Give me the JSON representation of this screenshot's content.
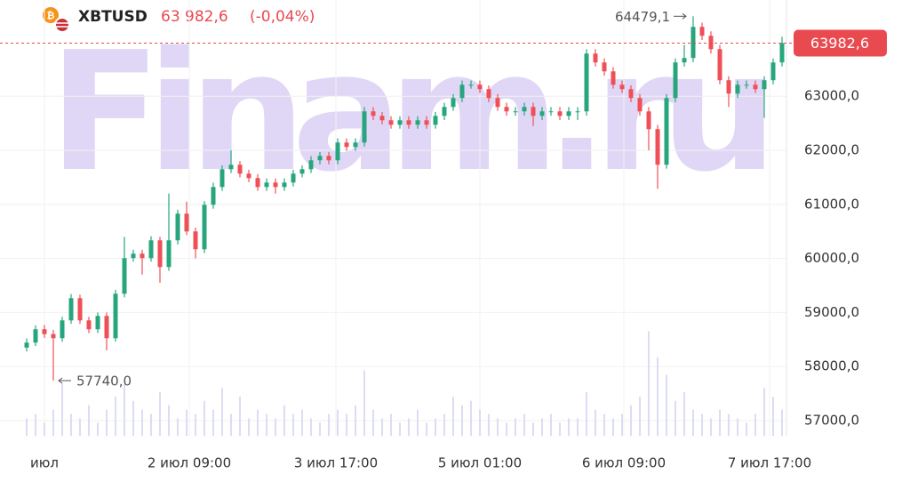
{
  "header": {
    "symbol": "XBTUSD",
    "price": "63 982,6",
    "change": "(-0,04%)"
  },
  "watermark": "Finam.ru",
  "chart_data": {
    "type": "candlestick",
    "open": [
      58350,
      58443,
      58690,
      58600,
      58525,
      58854,
      59265,
      58854,
      58690,
      58936,
      58525,
      59347,
      60006,
      60088,
      60006,
      60335,
      59841,
      60335,
      60828,
      60499,
      60170,
      60992,
      61321,
      61650,
      61733,
      61568,
      61486,
      61321,
      61404,
      61321,
      61404,
      61568,
      61650,
      61815,
      61897,
      61815,
      62144,
      62062,
      62144,
      62720,
      62637,
      62555,
      62473,
      62555,
      62473,
      62555,
      62473,
      62637,
      62802,
      62967,
      63213,
      63213,
      63131,
      62967,
      62802,
      62720,
      62720,
      62802,
      62637,
      62720,
      62720,
      62637,
      62720,
      62720,
      63789,
      63625,
      63460,
      63213,
      63131,
      62967,
      62720,
      62391,
      61733,
      62967,
      63625,
      63707,
      64283,
      64118,
      63871,
      63296,
      63049,
      63213,
      63213,
      63131,
      63296,
      63625
    ],
    "high": [
      58520,
      58760,
      58770,
      58680,
      58920,
      59340,
      59330,
      58920,
      59000,
      59000,
      59420,
      60400,
      60160,
      60160,
      60410,
      60400,
      61200,
      60900,
      61050,
      60570,
      61060,
      61400,
      61720,
      62000,
      61800,
      61640,
      61560,
      61480,
      61480,
      61480,
      61640,
      61720,
      61890,
      61970,
      61970,
      62220,
      62220,
      62220,
      62800,
      62800,
      62710,
      62630,
      62630,
      62630,
      62630,
      62630,
      62710,
      62880,
      63040,
      63290,
      63290,
      63290,
      63200,
      63040,
      62880,
      62800,
      62880,
      62880,
      62800,
      62800,
      62800,
      62800,
      62800,
      63870,
      63870,
      63700,
      63540,
      63290,
      63200,
      63040,
      62800,
      62470,
      63040,
      63700,
      63950,
      64479.1,
      64360,
      64200,
      63950,
      63370,
      63290,
      63290,
      63290,
      63370,
      63700,
      64100
    ],
    "low": [
      58280,
      58380,
      58530,
      57740,
      58460,
      58790,
      58790,
      58620,
      58620,
      58300,
      58460,
      59280,
      59940,
      59700,
      59940,
      59550,
      59770,
      60260,
      60430,
      60000,
      60100,
      60920,
      61250,
      61580,
      61500,
      61410,
      61250,
      61250,
      61200,
      61250,
      61330,
      61500,
      61580,
      61740,
      61740,
      61740,
      61990,
      61990,
      62070,
      62560,
      62480,
      62400,
      62400,
      62400,
      62400,
      62400,
      62400,
      62560,
      62730,
      62890,
      63140,
      63060,
      62890,
      62730,
      62640,
      62640,
      62640,
      62450,
      62560,
      62640,
      62560,
      62560,
      62560,
      62640,
      63550,
      63380,
      63140,
      63060,
      62890,
      62640,
      62000,
      61288,
      61660,
      62890,
      63550,
      63630,
      64040,
      63790,
      63220,
      62800,
      62970,
      63140,
      63060,
      62600,
      63220,
      63550
    ],
    "close": [
      58443,
      58690,
      58600,
      58525,
      58854,
      59265,
      58854,
      58690,
      58936,
      58525,
      59347,
      60006,
      60088,
      60006,
      60335,
      59841,
      60335,
      60828,
      60499,
      60170,
      60992,
      61321,
      61650,
      61733,
      61568,
      61486,
      61321,
      61404,
      61321,
      61404,
      61568,
      61650,
      61815,
      61897,
      61815,
      62144,
      62062,
      62144,
      62720,
      62637,
      62555,
      62473,
      62555,
      62473,
      62555,
      62473,
      62637,
      62802,
      62967,
      63213,
      63213,
      63131,
      62967,
      62802,
      62720,
      62720,
      62802,
      62637,
      62720,
      62720,
      62637,
      62720,
      62720,
      63789,
      63625,
      63460,
      63213,
      63131,
      62967,
      62720,
      62391,
      61733,
      62967,
      63625,
      63707,
      64283,
      64118,
      63871,
      63296,
      63049,
      63213,
      63213,
      63131,
      63296,
      63625,
      63982.6
    ],
    "volume": [
      4,
      5,
      3,
      6,
      12,
      5,
      4,
      7,
      3,
      6,
      9,
      12,
      8,
      6,
      5,
      10,
      7,
      4,
      6,
      5,
      8,
      6,
      11,
      5,
      9,
      4,
      6,
      5,
      4,
      7,
      5,
      6,
      4,
      3,
      5,
      6,
      5,
      7,
      15,
      6,
      4,
      5,
      3,
      4,
      6,
      3,
      4,
      5,
      9,
      7,
      8,
      6,
      5,
      4,
      3,
      4,
      5,
      3,
      4,
      5,
      3,
      4,
      4,
      10,
      6,
      5,
      4,
      5,
      7,
      9,
      24,
      18,
      14,
      8,
      10,
      6,
      5,
      4,
      6,
      5,
      4,
      3,
      5,
      11,
      9,
      6
    ],
    "up_color": "#27a67e",
    "down_color": "#ef4f56",
    "volume_color": "#dcdcf5",
    "xlim": [
      -3,
      85.5
    ],
    "ylim": [
      56720,
      64780
    ],
    "y2lim": [
      0,
      100
    ],
    "xticks": [
      {
        "value": 2,
        "label": "июл"
      },
      {
        "value": 18.3,
        "label": "2 июл 09:00"
      },
      {
        "value": 34.8,
        "label": "3 июл 17:00"
      },
      {
        "value": 51,
        "label": "5 июл 01:00"
      },
      {
        "value": 67.2,
        "label": "6 июл 09:00"
      },
      {
        "value": 83.6,
        "label": "7 июл 17:00"
      }
    ],
    "yticks": [
      {
        "value": 57000,
        "label": "57000,0"
      },
      {
        "value": 58000,
        "label": "58000,0"
      },
      {
        "value": 59000,
        "label": "59000,0"
      },
      {
        "value": 60000,
        "label": "60000,0"
      },
      {
        "value": 61000,
        "label": "61000,0"
      },
      {
        "value": 62000,
        "label": "62000,0"
      },
      {
        "value": 63000,
        "label": "63000,0"
      }
    ],
    "last_price": {
      "value": 63982.6,
      "label": "63982,6"
    },
    "annotations": [
      {
        "text": "64479,1",
        "index": 75,
        "value": 64479.1
      },
      {
        "text": "57740,0",
        "index": 3,
        "value": 57740
      }
    ],
    "grid": true
  }
}
